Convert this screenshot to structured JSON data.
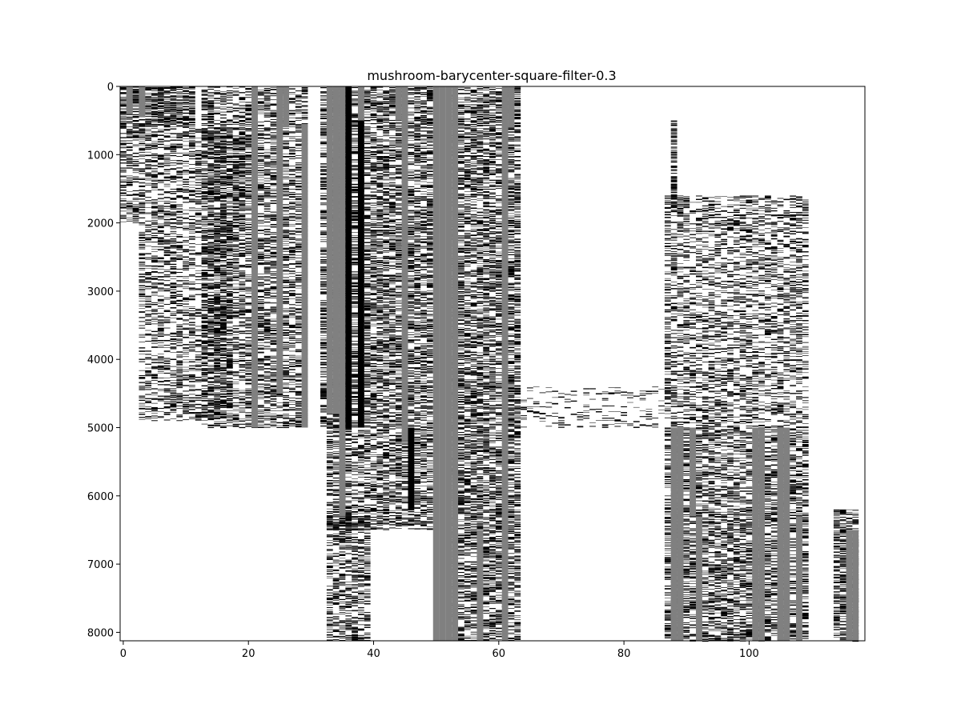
{
  "chart_data": {
    "type": "heatmap",
    "title": "mushroom-barycenter-square-filter-0.3",
    "xlabel": "",
    "ylabel": "",
    "x_range": [
      -0.5,
      118.5
    ],
    "y_range": [
      8124,
      0
    ],
    "x_ticks": [
      0,
      20,
      40,
      60,
      80,
      100
    ],
    "y_ticks": [
      0,
      1000,
      2000,
      3000,
      4000,
      5000,
      6000,
      7000,
      8000
    ],
    "value_colors": {
      "0": "#ffffff",
      "1": "#000000",
      "0.5": "#808080"
    },
    "gray_columns": [
      {
        "col": 1,
        "y": [
          0,
          400
        ]
      },
      {
        "col": 3,
        "y": [
          0,
          450
        ]
      },
      {
        "col": 21,
        "y": [
          0,
          5000
        ]
      },
      {
        "col": 25,
        "y": [
          0,
          4500
        ]
      },
      {
        "col": 26,
        "y": [
          0,
          600
        ]
      },
      {
        "col": 29,
        "y": [
          550,
          5000
        ]
      },
      {
        "col": 33,
        "y": [
          0,
          4800
        ]
      },
      {
        "col": 34,
        "y": [
          0,
          4800
        ]
      },
      {
        "col": 35,
        "y": [
          0,
          6300
        ]
      },
      {
        "col": 38,
        "y": [
          0,
          500
        ]
      },
      {
        "col": 44,
        "y": [
          0,
          500
        ]
      },
      {
        "col": 45,
        "y": [
          0,
          5200
        ]
      },
      {
        "col": 50,
        "y": [
          0,
          8124
        ]
      },
      {
        "col": 51,
        "y": [
          0,
          8124
        ]
      },
      {
        "col": 52,
        "y": [
          0,
          8124
        ]
      },
      {
        "col": 53,
        "y": [
          0,
          8124
        ]
      },
      {
        "col": 57,
        "y": [
          6500,
          8124
        ]
      },
      {
        "col": 61,
        "y": [
          0,
          8124
        ]
      },
      {
        "col": 62,
        "y": [
          0,
          600
        ]
      },
      {
        "col": 88,
        "y": [
          5000,
          8124
        ]
      },
      {
        "col": 89,
        "y": [
          5000,
          8124
        ]
      },
      {
        "col": 91,
        "y": [
          5000,
          6300
        ]
      },
      {
        "col": 92,
        "y": [
          6300,
          8124
        ]
      },
      {
        "col": 101,
        "y": [
          5000,
          8124
        ]
      },
      {
        "col": 102,
        "y": [
          5000,
          8124
        ]
      },
      {
        "col": 105,
        "y": [
          5000,
          8124
        ]
      },
      {
        "col": 106,
        "y": [
          5000,
          8124
        ]
      },
      {
        "col": 108,
        "y": [
          6300,
          8124
        ]
      },
      {
        "col": 116,
        "y": [
          6500,
          8124
        ]
      },
      {
        "col": 117,
        "y": [
          6500,
          8124
        ]
      }
    ],
    "black_columns": [
      {
        "col": 36,
        "y": [
          0,
          5000
        ]
      },
      {
        "col": 38,
        "y": [
          500,
          5000
        ]
      },
      {
        "col": 46,
        "y": [
          5000,
          6200
        ]
      }
    ],
    "striped_regions": [
      {
        "cols": [
          0,
          12
        ],
        "y": [
          0,
          600
        ],
        "density": 0.7
      },
      {
        "cols": [
          0,
          20
        ],
        "y": [
          600,
          2000
        ],
        "density": 0.4
      },
      {
        "cols": [
          3,
          18
        ],
        "y": [
          2000,
          4900
        ],
        "density": 0.35
      },
      {
        "cols": [
          13,
          30
        ],
        "y": [
          0,
          5000
        ],
        "density": 0.45
      },
      {
        "cols": [
          32,
          50
        ],
        "y": [
          0,
          5000
        ],
        "density": 0.55
      },
      {
        "cols": [
          53,
          64
        ],
        "y": [
          0,
          8124
        ],
        "density": 0.55
      },
      {
        "cols": [
          33,
          50
        ],
        "y": [
          5000,
          6500
        ],
        "density": 0.5
      },
      {
        "cols": [
          33,
          40
        ],
        "y": [
          6300,
          8124
        ],
        "density": 0.45
      },
      {
        "cols": [
          87,
          110
        ],
        "y": [
          1600,
          5000
        ],
        "density": 0.35
      },
      {
        "cols": [
          87,
          110
        ],
        "y": [
          5000,
          8124
        ],
        "density": 0.5
      },
      {
        "cols": [
          114,
          118
        ],
        "y": [
          6200,
          8124
        ],
        "density": 0.6
      },
      {
        "cols": [
          64,
          88
        ],
        "y": [
          4400,
          5000
        ],
        "density": 0.15
      },
      {
        "cols": [
          88,
          89
        ],
        "y": [
          500,
          1800
        ],
        "density": 0.6
      }
    ]
  }
}
